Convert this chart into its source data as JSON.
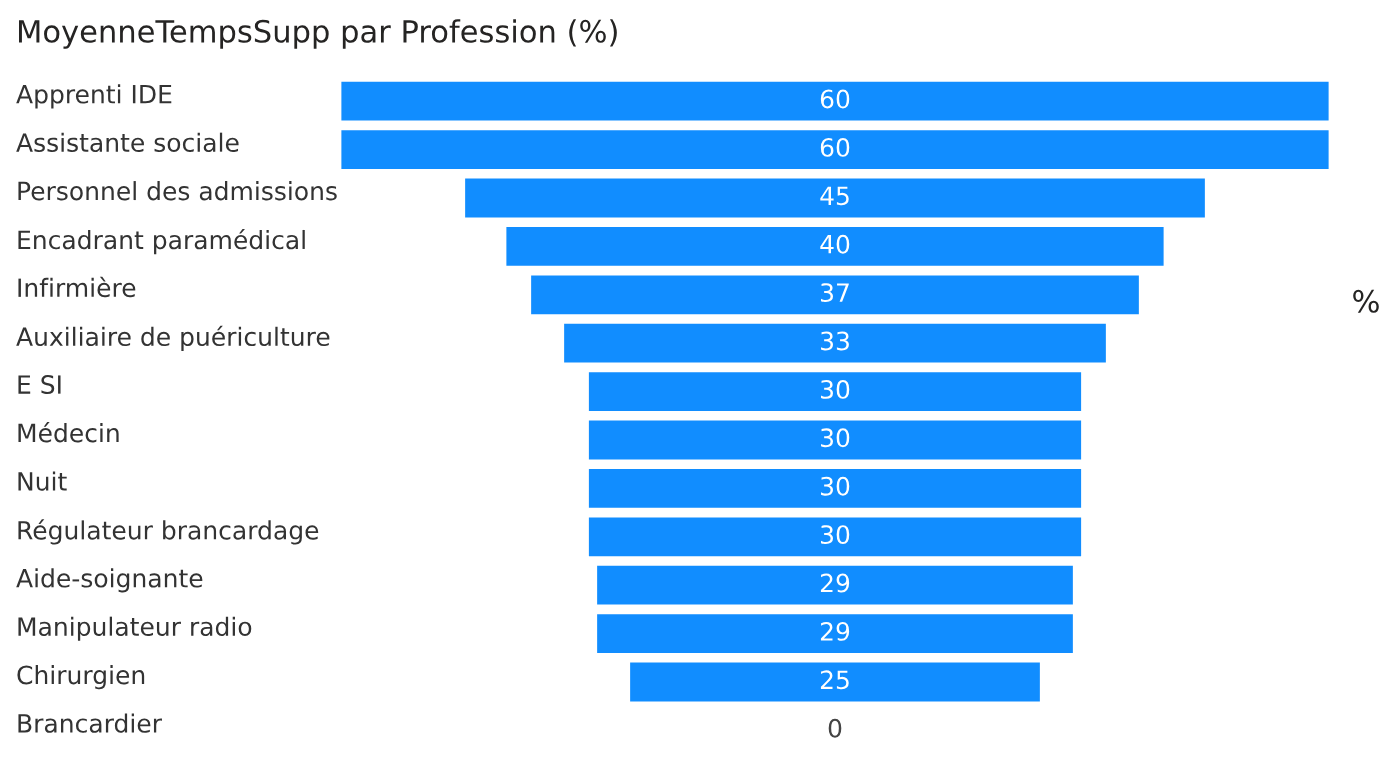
{
  "chart_data": {
    "type": "other",
    "title": "MoyenneTempsSupp par Profession (%)",
    "categories": [
      "Apprenti IDE",
      "Assistante sociale",
      "Personnel des admissions",
      "Encadrant paramédical",
      "Infirmière",
      "Auxiliaire de puériculture",
      "E SI",
      "Médecin",
      "Nuit",
      "Régulateur brancardage",
      "Aide-soignante",
      "Manipulateur radio",
      "Chirurgien",
      "Brancardier"
    ],
    "values": [
      60,
      60,
      45,
      40,
      37,
      33,
      30,
      30,
      30,
      30,
      29,
      29,
      25,
      0
    ],
    "color": "#118dff",
    "data_labels": true,
    "annotations": [
      "%"
    ]
  }
}
